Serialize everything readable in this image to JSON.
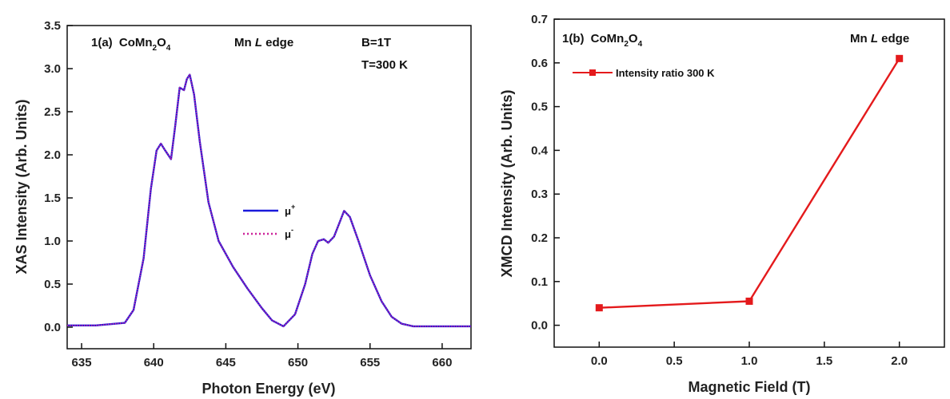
{
  "chart_data": [
    {
      "type": "line",
      "panel": "1(a)",
      "compound": "CoMn",
      "sub1": "2",
      "mid": "O",
      "sub2": "4",
      "edge_prefix": "Mn ",
      "edge_italic": "L",
      "edge_suffix": " edge",
      "cond1": "B=1T",
      "cond2": "T=300 K",
      "xlabel": "Photon Energy (eV)",
      "ylabel": "XAS Intensity (Arb. Units)",
      "xlim": [
        634,
        662
      ],
      "ylim": [
        -0.25,
        3.5
      ],
      "xticks": [
        "635",
        "640",
        "645",
        "650",
        "655",
        "660"
      ],
      "yticks": [
        "0.0",
        "0.5",
        "1.0",
        "1.5",
        "2.0",
        "2.5",
        "3.0",
        "3.5"
      ],
      "legend_position": "center-right",
      "series": [
        {
          "name_base": "μ",
          "name_sup": "+",
          "color": "#1a1adb",
          "style": "solid",
          "x": [
            634,
            636,
            638,
            638.6,
            639.3,
            639.8,
            640.2,
            640.5,
            640.8,
            641.2,
            641.5,
            641.8,
            642.1,
            642.3,
            642.5,
            642.8,
            643.2,
            643.8,
            644.5,
            645.5,
            646.5,
            647.5,
            648.2,
            649,
            649.8,
            650.5,
            651,
            651.4,
            651.8,
            652.1,
            652.5,
            652.9,
            653.2,
            653.6,
            654.2,
            655,
            655.8,
            656.5,
            657.2,
            658,
            660,
            662
          ],
          "y": [
            0.02,
            0.02,
            0.05,
            0.2,
            0.8,
            1.6,
            2.05,
            2.13,
            2.05,
            1.95,
            2.35,
            2.78,
            2.75,
            2.88,
            2.93,
            2.7,
            2.15,
            1.45,
            1.0,
            0.7,
            0.45,
            0.22,
            0.08,
            0.01,
            0.15,
            0.5,
            0.85,
            1.0,
            1.02,
            0.98,
            1.05,
            1.22,
            1.35,
            1.28,
            1.0,
            0.6,
            0.3,
            0.12,
            0.04,
            0.01,
            0.01,
            0.01
          ]
        },
        {
          "name_base": "μ",
          "name_sup": "-",
          "color": "#cc2299",
          "style": "dotted",
          "x": [
            634,
            636,
            638,
            638.6,
            639.3,
            639.8,
            640.2,
            640.5,
            640.8,
            641.2,
            641.5,
            641.8,
            642.1,
            642.3,
            642.5,
            642.8,
            643.2,
            643.8,
            644.5,
            645.5,
            646.5,
            647.5,
            648.2,
            649,
            649.8,
            650.5,
            651,
            651.4,
            651.8,
            652.1,
            652.5,
            652.9,
            653.2,
            653.6,
            654.2,
            655,
            655.8,
            656.5,
            657.2,
            658,
            660,
            662
          ],
          "y": [
            0.02,
            0.02,
            0.05,
            0.2,
            0.8,
            1.6,
            2.05,
            2.13,
            2.05,
            1.95,
            2.35,
            2.78,
            2.75,
            2.88,
            2.93,
            2.7,
            2.15,
            1.45,
            1.0,
            0.7,
            0.45,
            0.22,
            0.08,
            0.01,
            0.15,
            0.5,
            0.85,
            1.0,
            1.02,
            0.98,
            1.05,
            1.22,
            1.35,
            1.28,
            1.0,
            0.6,
            0.3,
            0.12,
            0.04,
            0.01,
            0.01,
            0.01
          ]
        }
      ]
    },
    {
      "type": "line",
      "panel": "1(b)",
      "compound": "CoMn",
      "sub1": "2",
      "mid": "O",
      "sub2": "4",
      "edge_prefix": "Mn ",
      "edge_italic": "L",
      "edge_suffix": " edge",
      "xlabel": "Magnetic Field (T)",
      "ylabel": "XMCD Intensity (Arb. Units)",
      "xlim": [
        -0.3,
        2.3
      ],
      "ylim": [
        -0.05,
        0.7
      ],
      "xticks": [
        "0.0",
        "0.5",
        "1.0",
        "1.5",
        "2.0"
      ],
      "yticks": [
        "0.0",
        "0.1",
        "0.2",
        "0.3",
        "0.4",
        "0.5",
        "0.6",
        "0.7"
      ],
      "legend_position": "top-left",
      "series": [
        {
          "name": "Intensity ratio 300 K",
          "color": "#e41a1c",
          "marker": "square",
          "x": [
            0.0,
            1.0,
            2.0
          ],
          "y": [
            0.04,
            0.055,
            0.61
          ]
        }
      ]
    }
  ]
}
